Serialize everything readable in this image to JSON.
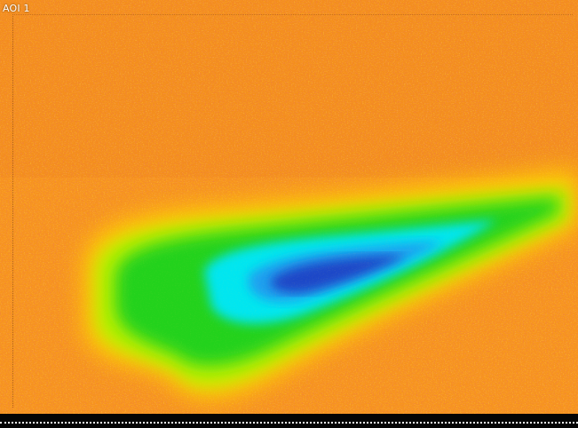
{
  "aoi": {
    "label": "AOI 1"
  },
  "heatmap": {
    "colors": {
      "background": "#f7941d",
      "warm_red": "#e8501e",
      "yellow": "#ffdd00",
      "lime": "#b4f000",
      "green": "#22d21e",
      "cyan": "#00e6f0",
      "sky": "#1ea0f0",
      "blue": "#1e46c8",
      "bottom_strip": "#050505"
    }
  }
}
